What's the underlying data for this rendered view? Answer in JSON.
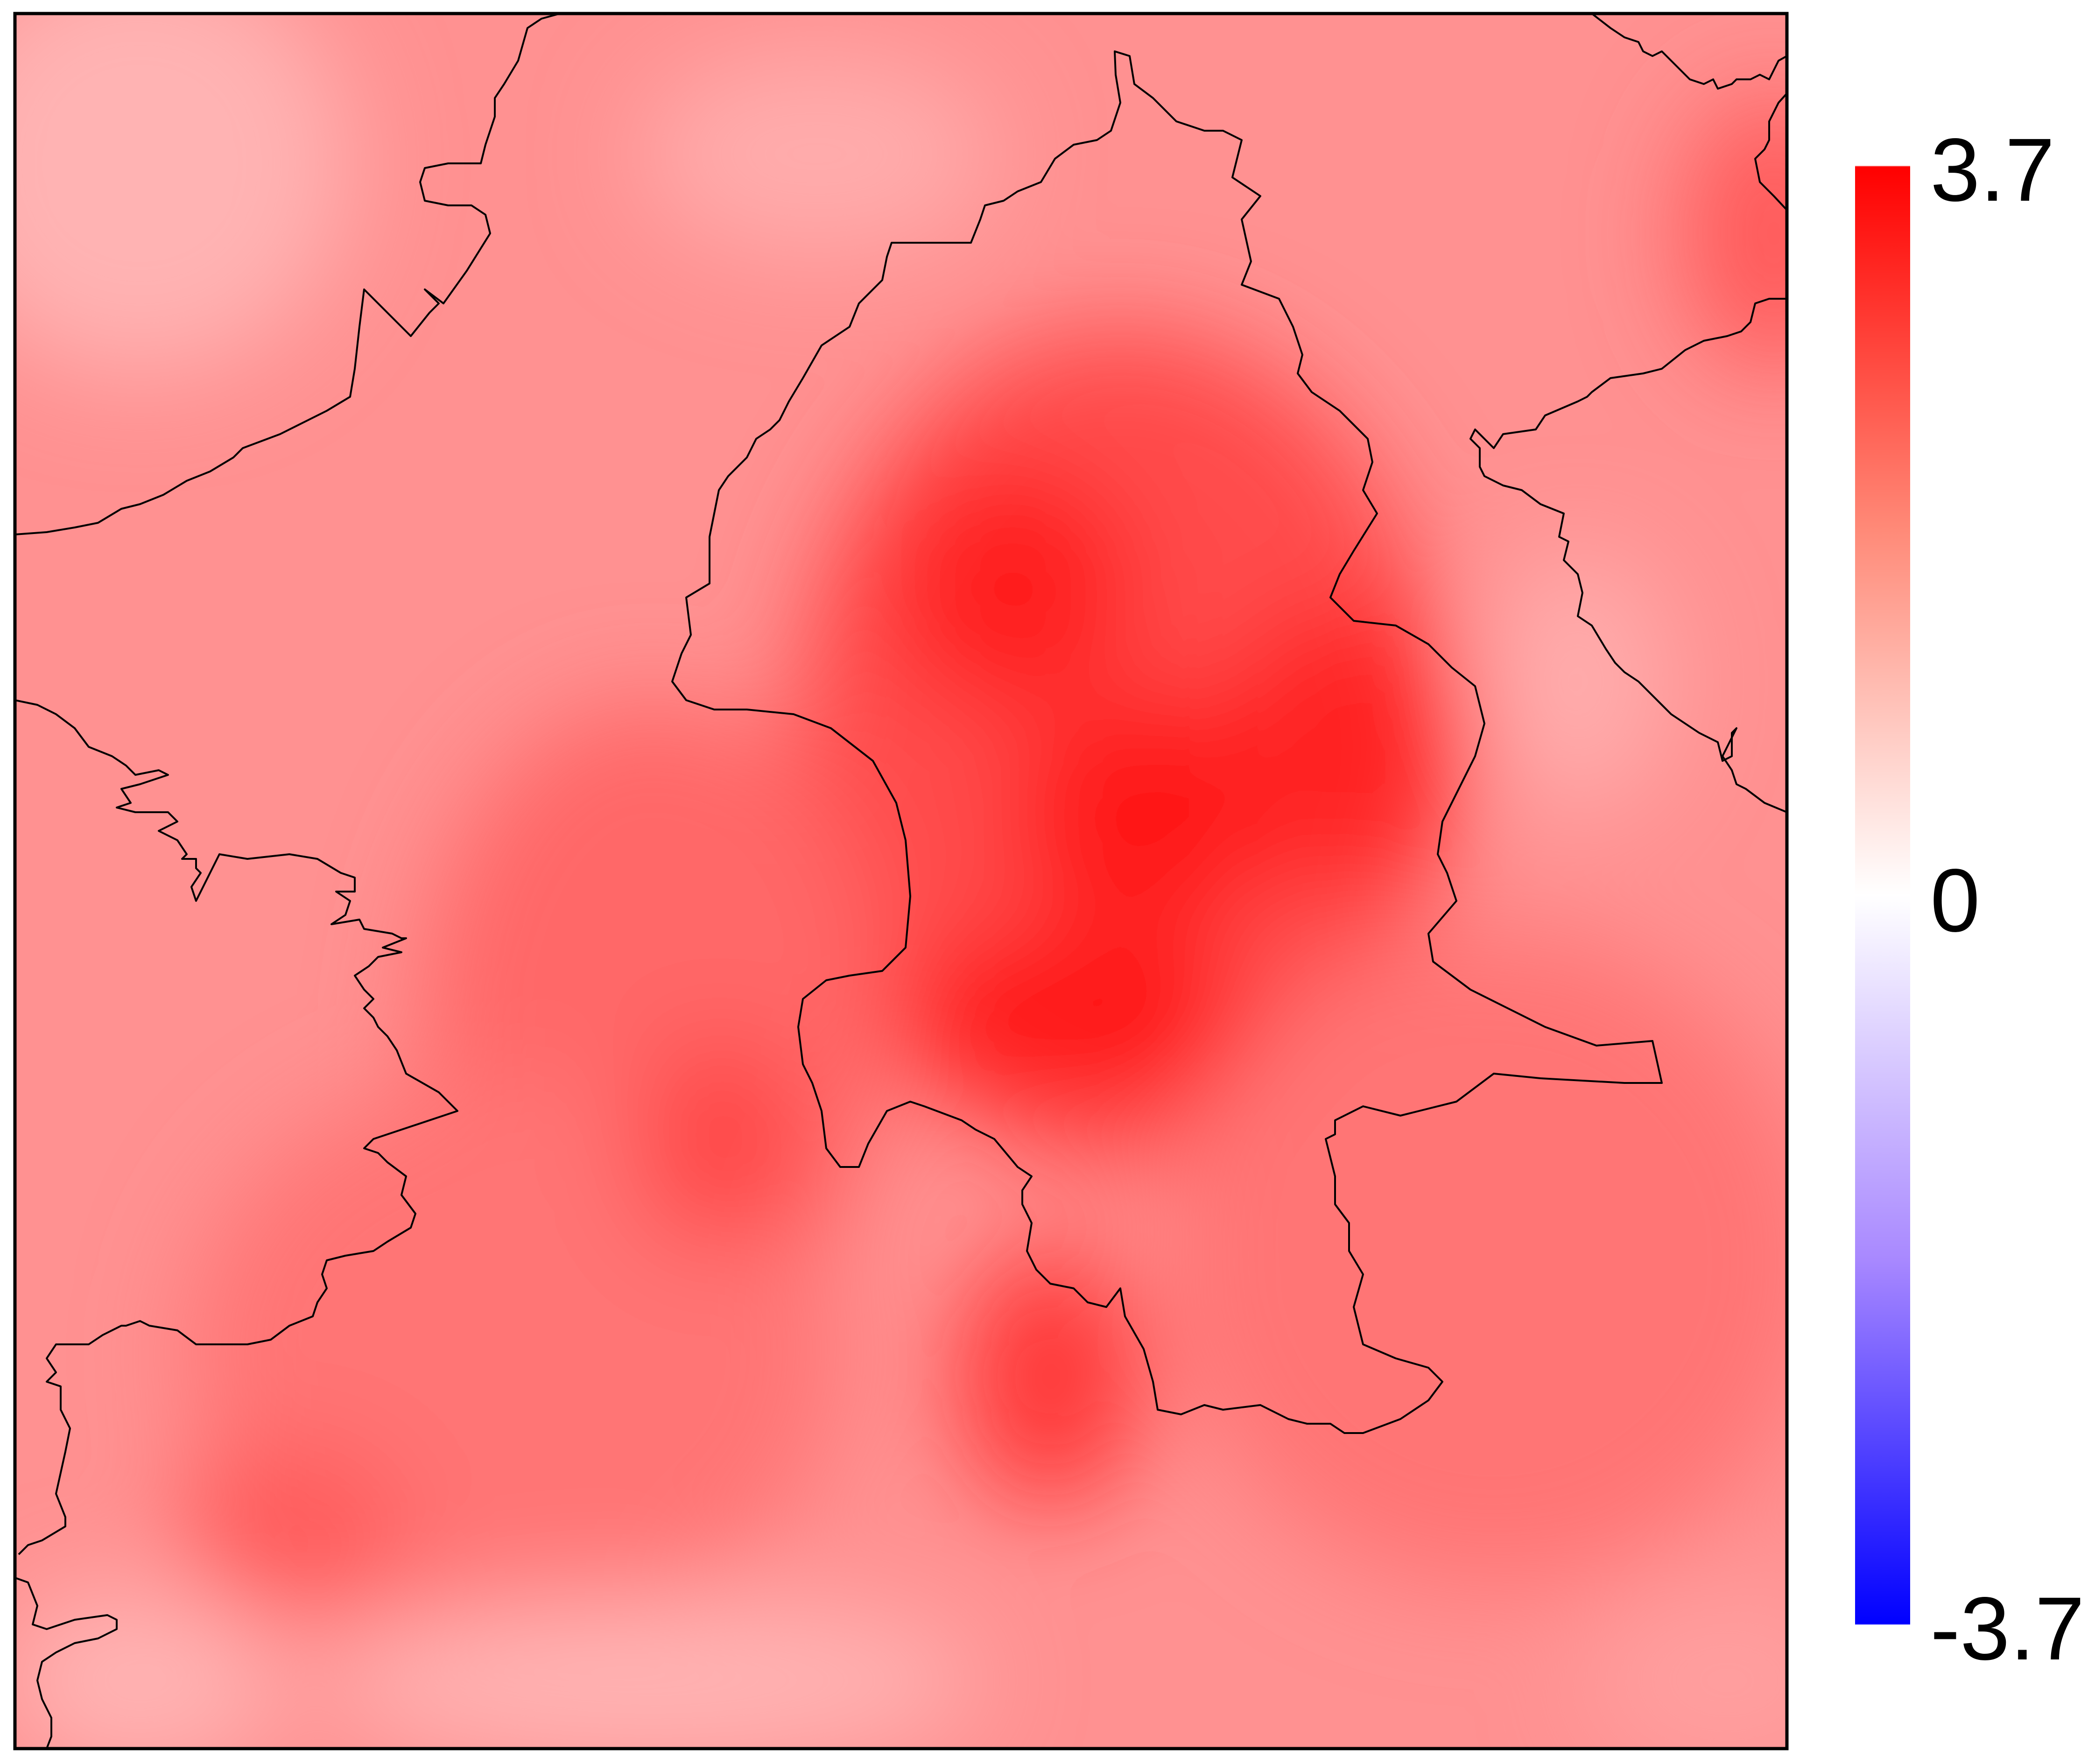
{
  "map": {
    "colorscale": {
      "max_label": "3.7",
      "mid_label": "0",
      "min_label": "-3.7",
      "max_value": 3.7,
      "min_value": -3.7,
      "colors": {
        "max": "#ff0000",
        "mid": "#ffffff",
        "min": "#0000ff"
      }
    },
    "field": {
      "background_value": 1.6,
      "hotspots": [
        {
          "name": "central-core-north",
          "value": 3.3
        },
        {
          "name": "central-core-middle",
          "value": 3.4
        },
        {
          "name": "central-core-south",
          "value": 3.6
        },
        {
          "name": "east-lobe",
          "value": 3.2
        },
        {
          "name": "south-spur",
          "value": 2.9
        },
        {
          "name": "west-center",
          "value": 2.7
        },
        {
          "name": "southwest",
          "value": 2.4
        },
        {
          "name": "northeast-corner",
          "value": 2.4
        }
      ],
      "cool_patches": [
        {
          "name": "north-center-light",
          "value": 1.2
        },
        {
          "name": "east-light",
          "value": 1.2
        },
        {
          "name": "northwest-light",
          "value": 1.1
        },
        {
          "name": "south-bottom-light",
          "value": 1.1
        }
      ]
    },
    "border_color": "#000000",
    "frame_color": "#000000"
  }
}
